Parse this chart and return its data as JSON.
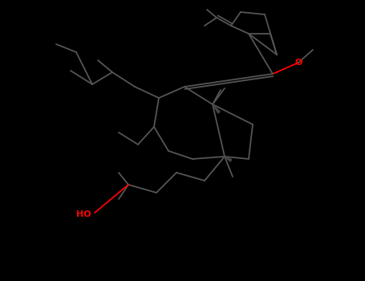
{
  "background": "#000000",
  "bond_color": "#555555",
  "stereo_color": "#444444",
  "O_color": "#FF0000",
  "HO_color": "#FF0000",
  "label_O": "O",
  "label_HO": "HO",
  "figsize": [
    4.55,
    3.5
  ],
  "dpi": 100,
  "bond_lw": 1.3
}
